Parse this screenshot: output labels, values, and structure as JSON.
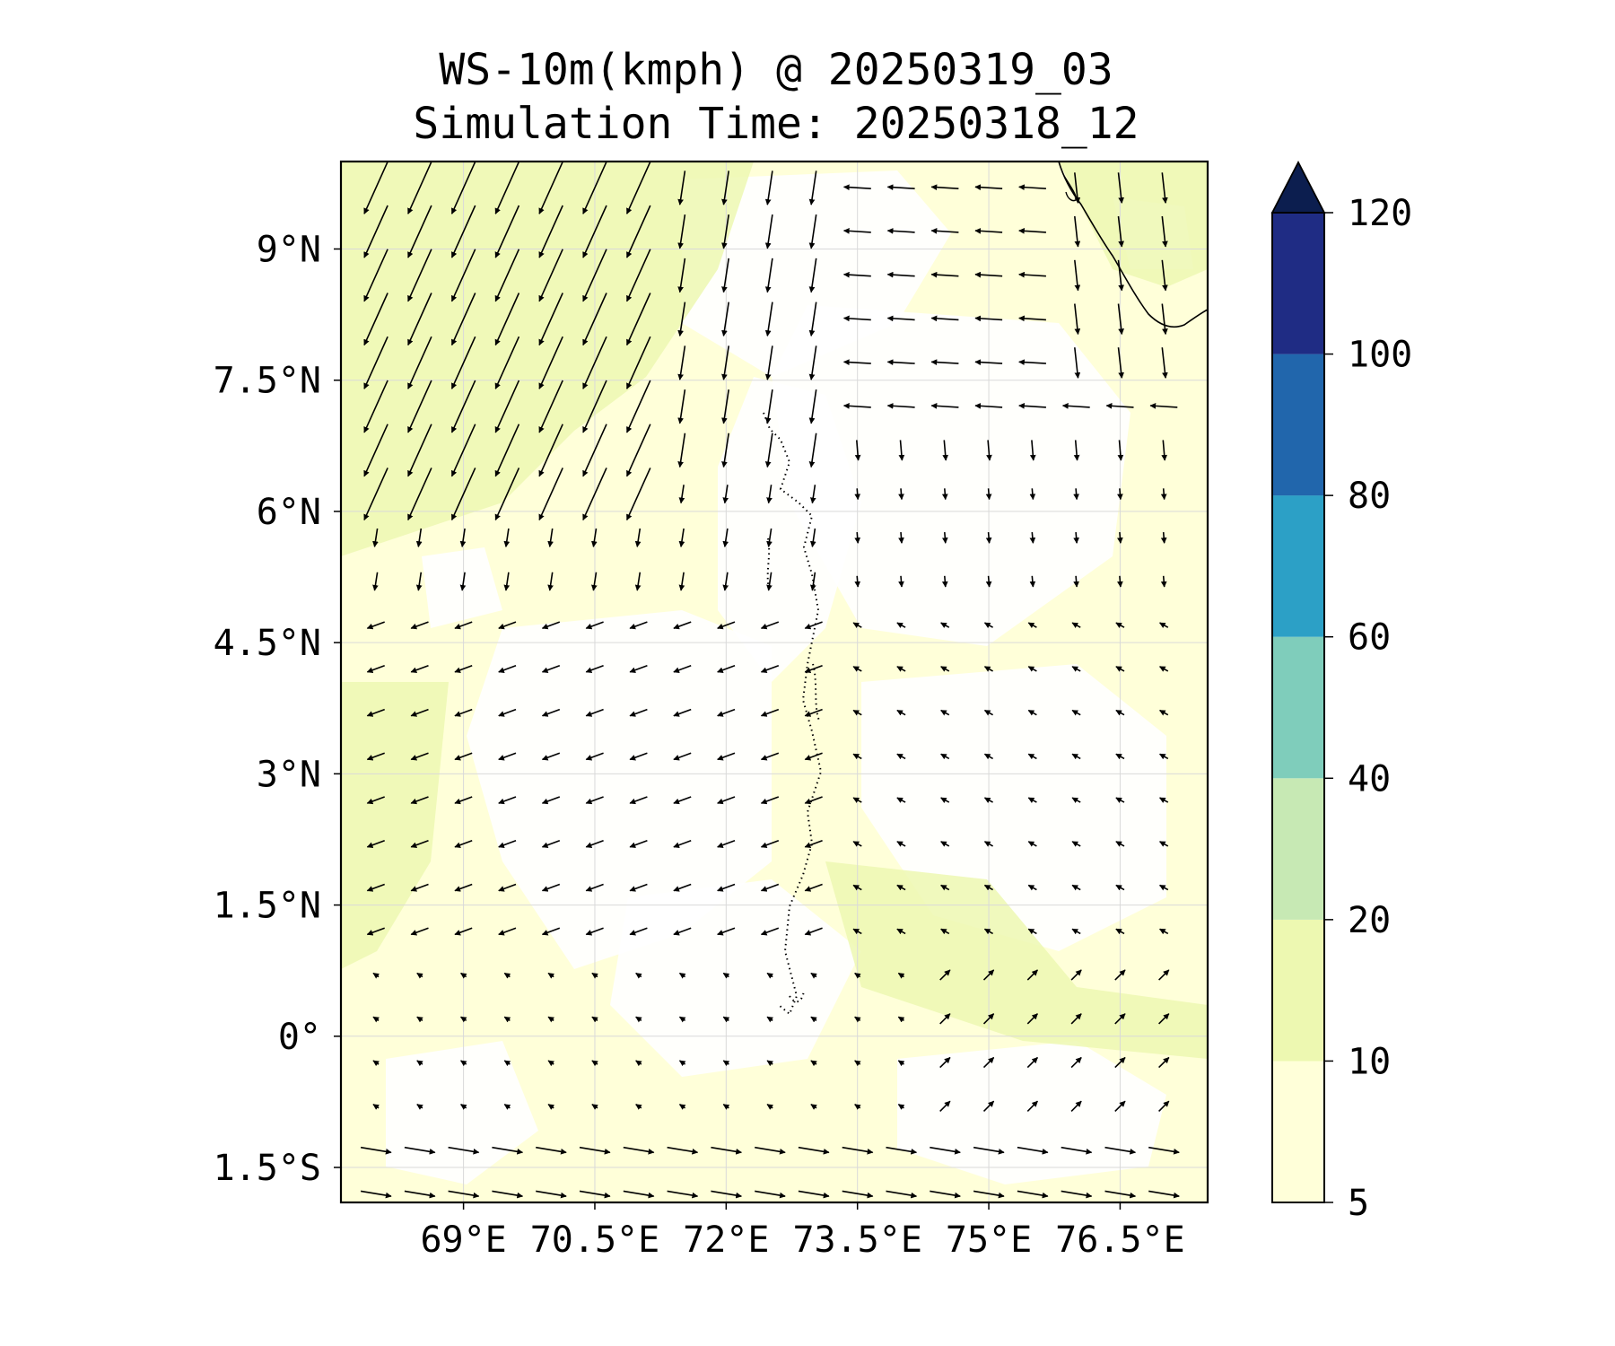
{
  "title": "WS-10m(kmph) @ 20250319_03",
  "subtitle": "Simulation Time: 20250318_12",
  "map": {
    "lon_range": [
      67.6,
      77.5
    ],
    "lat_range": [
      -1.9,
      10.0
    ],
    "x_ticks": [
      {
        "value": 69,
        "label": "69°E"
      },
      {
        "value": 70.5,
        "label": "70.5°E"
      },
      {
        "value": 72,
        "label": "72°E"
      },
      {
        "value": 73.5,
        "label": "73.5°E"
      },
      {
        "value": 75,
        "label": "75°E"
      },
      {
        "value": 76.5,
        "label": "76.5°E"
      }
    ],
    "y_ticks": [
      {
        "value": 9,
        "label": "9°N"
      },
      {
        "value": 7.5,
        "label": "7.5°N"
      },
      {
        "value": 6,
        "label": "6°N"
      },
      {
        "value": 4.5,
        "label": "4.5°N"
      },
      {
        "value": 3,
        "label": "3°N"
      },
      {
        "value": 1.5,
        "label": "1.5°N"
      },
      {
        "value": 0,
        "label": "0°"
      },
      {
        "value": -1.5,
        "label": "1.5°S"
      }
    ],
    "gridlines": true,
    "field": "10 m wind speed with wind vectors",
    "background_color": "#ffffff",
    "land_color": "#ffffff",
    "coastline_color": "#000000"
  },
  "colorbar": {
    "levels": [
      5,
      10,
      20,
      40,
      60,
      80,
      100,
      120
    ],
    "tick_labels": [
      "5",
      "10",
      "20",
      "40",
      "60",
      "80",
      "100",
      "120"
    ],
    "colors": [
      "#ffffd9",
      "#edf8b1",
      "#c7e9b4",
      "#7fcdbb",
      "#2ca0c6",
      "#2166ac",
      "#1f2c84"
    ],
    "extend_color": "#0c1e4f",
    "extend": "max"
  }
}
